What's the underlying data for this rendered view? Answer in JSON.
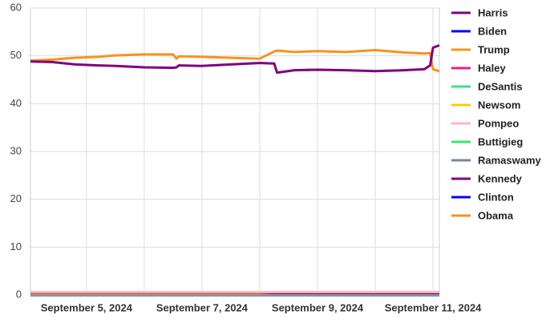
{
  "chart_data": {
    "type": "line",
    "x": [
      4.03,
      4.4,
      4.8,
      5.2,
      5.5,
      6.0,
      6.5,
      6.56,
      6.6,
      7.0,
      7.5,
      7.99,
      8.0,
      8.25,
      8.3,
      8.6,
      9.0,
      9.5,
      10.0,
      10.5,
      10.85,
      10.95,
      11.0,
      11.11
    ],
    "xlim": [
      4.03,
      11.11
    ],
    "xticks": [
      {
        "value": 5,
        "label": "September 5, 2024"
      },
      {
        "value": 7,
        "label": "September 7, 2024"
      },
      {
        "value": 9,
        "label": "September 9, 2024"
      },
      {
        "value": 11,
        "label": "September 11, 2024"
      }
    ],
    "x_minor_ticks": [
      6,
      8,
      10
    ],
    "ylim": [
      0,
      60
    ],
    "yticks": [
      0,
      10,
      20,
      30,
      40,
      50,
      60
    ],
    "grid": true,
    "legend": "right",
    "series": [
      {
        "name": "Harris",
        "color": "#800080",
        "values": [
          48.8,
          48.7,
          48.2,
          48,
          47.9,
          47.6,
          47.5,
          47.6,
          48,
          47.9,
          48.2,
          48.5,
          48.5,
          48.4,
          46.5,
          47,
          47.1,
          47,
          46.8,
          47,
          47.2,
          48,
          51.7,
          52.2
        ]
      },
      {
        "name": "Biden",
        "color": "#0000ff",
        "values": [
          0,
          0,
          0,
          0,
          0,
          0,
          0,
          0,
          0,
          0,
          0,
          0,
          0,
          0,
          0,
          0,
          0,
          0,
          0,
          0,
          0,
          0,
          0,
          0
        ]
      },
      {
        "name": "Trump",
        "color": "#f7931e",
        "values": [
          49,
          49.2,
          49.6,
          49.8,
          50.1,
          50.3,
          50.3,
          49.4,
          49.9,
          49.8,
          49.6,
          49.4,
          49.4,
          50.9,
          51.1,
          50.8,
          51,
          50.8,
          51.2,
          50.7,
          50.5,
          50.6,
          47.2,
          46.8
        ]
      },
      {
        "name": "Haley",
        "color": "#e91e8c",
        "values": [
          0.5,
          0.5,
          0.5,
          0.5,
          0.5,
          0.5,
          0.5,
          0.5,
          0.5,
          0.5,
          0.5,
          0.5,
          0.5,
          0.5,
          0.5,
          0.5,
          0.5,
          0.5,
          0.5,
          0.5,
          0.5,
          0.5,
          0.5,
          0.5
        ]
      },
      {
        "name": "DeSantis",
        "color": "#3de37a",
        "values": [
          0.2,
          0.2,
          0.2,
          0.2,
          0.2,
          0.2,
          0.2,
          0.2,
          0.2,
          0.2,
          0.2,
          0.2,
          0.2,
          0.2,
          0.2,
          0.2,
          0.2,
          0.2,
          0.2,
          0.2,
          0.2,
          0.2,
          0.2,
          0.2
        ]
      },
      {
        "name": "Newsom",
        "color": "#f5d000",
        "values": [
          0.1,
          0.1,
          0.1,
          0.1,
          0.1,
          0.1,
          0.1,
          0.1,
          0.1,
          0.1,
          0.1,
          0.1,
          0.1,
          0.1,
          0.1,
          0.1,
          0.1,
          0.1,
          0.1,
          0.1,
          0.1,
          0.1,
          0.1,
          0.1
        ]
      },
      {
        "name": "Pompeo",
        "color": "#ffb6c1",
        "values": [
          0.6,
          0.6,
          0.6,
          0.6,
          0.6,
          0.6,
          0.6,
          0.6,
          0.6,
          0.6,
          0.6,
          0.6,
          0.6,
          0.6,
          0.6,
          0.6,
          0.6,
          0.6,
          0.6,
          0.6,
          0.6,
          0.6,
          0.6,
          0.6
        ]
      },
      {
        "name": "Buttigieg",
        "color": "#3de37a",
        "values": [
          0.1,
          0.1,
          0.1,
          0.1,
          0.1,
          0.1,
          0.1,
          0.1,
          0.1,
          0.1,
          0.1,
          0.1,
          0.1,
          0.1,
          0.1,
          0.1,
          0.1,
          0.1,
          0.1,
          0.1,
          0.1,
          0.1,
          0.1,
          0.1
        ]
      },
      {
        "name": "Ramaswamy",
        "color": "#778899",
        "values": [
          0.1,
          0.1,
          0.1,
          0.1,
          0.1,
          0.1,
          0.1,
          0.1,
          0.1,
          0.1,
          0.1,
          0.1,
          0.1,
          0.1,
          0.1,
          0.1,
          0.1,
          0.1,
          0.1,
          0.1,
          0.1,
          0.1,
          0.1,
          0.1
        ]
      },
      {
        "name": "Kennedy",
        "color": "#800080",
        "values": [
          0.5,
          0.5,
          0.5,
          0.5,
          0.5,
          0.5,
          0.5,
          0.5,
          0.5,
          0.5,
          0.5,
          0.5,
          0.5,
          0.4,
          0.4,
          0.4,
          0.4,
          0.4,
          0.4,
          0.4,
          0.4,
          0.4,
          0.4,
          0.4
        ]
      },
      {
        "name": "Clinton",
        "color": "#0000ff",
        "values": [
          0,
          0,
          0,
          0,
          0,
          0,
          0,
          0,
          0,
          0,
          0,
          0,
          0,
          0,
          0,
          0,
          0,
          0,
          0,
          0,
          0,
          0,
          0,
          0
        ]
      },
      {
        "name": "Obama",
        "color": "#f7931e",
        "values": [
          0.3,
          0.3,
          0.3,
          0.3,
          0.3,
          0.3,
          0.3,
          0.3,
          0.3,
          0.3,
          0.3,
          0.3,
          0.3,
          0.3,
          0.3,
          0.3,
          0.3,
          0.3,
          0.3,
          0.3,
          0.3,
          0.3,
          0.3,
          0.3
        ]
      }
    ]
  }
}
